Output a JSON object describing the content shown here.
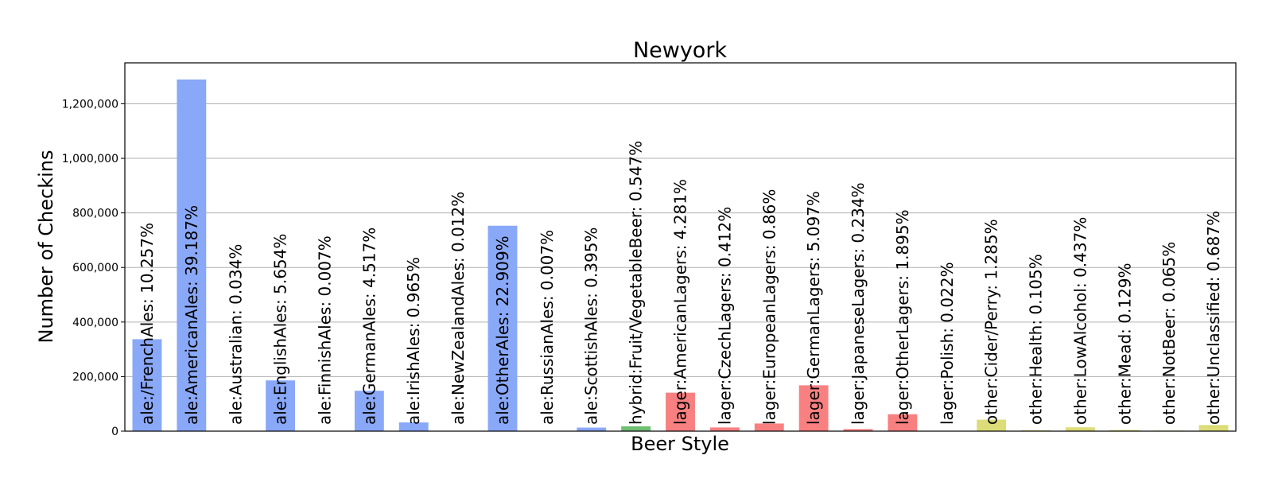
{
  "chart_data": {
    "type": "bar",
    "title": "Newyork",
    "xlabel": "Beer Style",
    "ylabel": "Number of Checkins",
    "ylim": [
      0,
      1350000
    ],
    "yticks": [
      0,
      200000,
      400000,
      600000,
      800000,
      1000000,
      1200000
    ],
    "ytick_labels": [
      "0",
      "200,000",
      "400,000",
      "600,000",
      "800,000",
      "1,000,000",
      "1,200,000"
    ],
    "grid": true,
    "categories": [
      "ale:/FrenchAles",
      "ale:AmericanAles",
      "ale:Australian",
      "ale:EnglishAles",
      "ale:FinnishAles",
      "ale:GermanAles",
      "ale:IrishAles",
      "ale:NewZealandAles",
      "ale:OtherAles",
      "ale:RussianAles",
      "ale:ScottishAles",
      "hybrid:Fruit/VegetableBeer",
      "lager:AmericanLagers",
      "lager:CzechLagers",
      "lager:EuropeanLagers",
      "lager:GermanLagers",
      "lager:JapaneseLagers",
      "lager:OtherLagers",
      "lager:Polish",
      "other:Cider/Perry",
      "other:Health",
      "other:LowAlcohol",
      "other:Mead",
      "other:NotBeer",
      "other:Unclassified"
    ],
    "values": [
      337000,
      1289000,
      1100,
      186000,
      230,
      148000,
      32000,
      390,
      753000,
      230,
      13000,
      18000,
      141000,
      13500,
      28000,
      168000,
      7700,
      62000,
      720,
      42000,
      3500,
      14000,
      4200,
      2100,
      22500
    ],
    "percent_labels": [
      "ale:/FrenchAles: 10.257%",
      "ale:AmericanAles: 39.187%",
      "ale:Australian: 0.034%",
      "ale:EnglishAles: 5.654%",
      "ale:FinnishAles: 0.007%",
      "ale:GermanAles: 4.517%",
      "ale:IrishAles: 0.965%",
      "ale:NewZealandAles: 0.012%",
      "ale:OtherAles: 22.909%",
      "ale:RussianAles: 0.007%",
      "ale:ScottishAles: 0.395%",
      "hybrid:Fruit/VegetableBeer: 0.547%",
      "lager:AmericanLagers: 4.281%",
      "lager:CzechLagers: 0.412%",
      "lager:EuropeanLagers: 0.86%",
      "lager:GermanLagers: 5.097%",
      "lager:JapaneseLagers: 0.234%",
      "lager:OtherLagers: 1.895%",
      "lager:Polish: 0.022%",
      "other:Cider/Perry: 1.285%",
      "other:Health: 0.105%",
      "other:LowAlcohol: 0.437%",
      "other:Mead: 0.129%",
      "other:NotBeer: 0.065%",
      "other:Unclassified: 0.687%"
    ],
    "groups": [
      "ale",
      "ale",
      "ale",
      "ale",
      "ale",
      "ale",
      "ale",
      "ale",
      "ale",
      "ale",
      "ale",
      "hybrid",
      "lager",
      "lager",
      "lager",
      "lager",
      "lager",
      "lager",
      "lager",
      "other",
      "other",
      "other",
      "other",
      "other",
      "other"
    ],
    "group_colors": {
      "ale": "#8aa8f8",
      "hybrid": "#6fbf73",
      "lager": "#f88080",
      "other": "#dcdc78"
    }
  }
}
